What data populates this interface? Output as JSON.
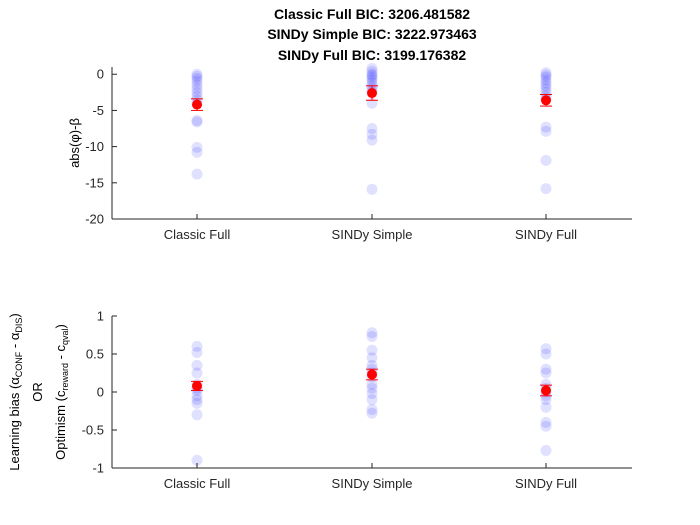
{
  "figure": {
    "title_lines": [
      "Classic Full BIC: 3206.481582",
      "SINDy Simple BIC: 3222.973463",
      "SINDy Full BIC: 3199.176382"
    ]
  },
  "colors": {
    "points": "#0000ff",
    "points_opacity": 0.12,
    "mean": "#ff0000",
    "axis": "#262626"
  },
  "chart_data": [
    {
      "type": "scatter",
      "title": "",
      "xlabel": "",
      "ylabel": "abs(φ)-β",
      "categories": [
        "Classic Full",
        "SINDy Simple",
        "SINDy Full"
      ],
      "ylim": [
        -20,
        1
      ],
      "yticks": [
        0,
        -5,
        -10,
        -15,
        -20
      ],
      "ytick_labels": [
        "0",
        "-5",
        "-10",
        "-15",
        "-20"
      ],
      "grid": false,
      "points": [
        [
          0.0,
          -0.3,
          -0.6,
          -1.0,
          -1.5,
          -2.0,
          -2.5,
          -3.0,
          -3.5,
          -4.0,
          -6.4,
          -6.6,
          -10.1,
          -10.8,
          -13.8
        ],
        [
          0.8,
          0.4,
          0.0,
          -0.2,
          -0.5,
          -0.8,
          -1.2,
          -1.6,
          -2.0,
          -2.4,
          -4.0,
          -7.5,
          -8.3,
          -9.1,
          -15.9
        ],
        [
          0.2,
          -0.1,
          -0.4,
          -0.8,
          -1.2,
          -1.6,
          -2.0,
          -2.5,
          -3.0,
          -3.4,
          -7.3,
          -7.9,
          -11.9,
          -15.8
        ]
      ],
      "means": [
        -4.2,
        -2.6,
        -3.6
      ],
      "errors": [
        0.8,
        1.0,
        0.8
      ]
    },
    {
      "type": "scatter",
      "title": "",
      "xlabel": "",
      "ylabel_lines": [
        "Learning bias (αCONF - αDIS)",
        "OR",
        "Optimism (creward - cqval)"
      ],
      "categories": [
        "Classic Full",
        "SINDy Simple",
        "SINDy Full"
      ],
      "ylim": [
        -1,
        1
      ],
      "yticks": [
        1,
        0.5,
        0,
        -0.5,
        -1
      ],
      "ytick_labels": [
        "1",
        "0.5",
        "0",
        "-0.5",
        "-1"
      ],
      "grid": false,
      "points": [
        [
          0.6,
          0.52,
          0.35,
          0.25,
          0.1,
          0.05,
          0.02,
          -0.05,
          -0.1,
          -0.15,
          -0.3,
          -0.9
        ],
        [
          0.78,
          0.73,
          0.55,
          0.45,
          0.35,
          0.3,
          0.25,
          0.2,
          0.1,
          0.05,
          -0.02,
          -0.1,
          -0.23,
          -0.28
        ],
        [
          0.57,
          0.5,
          0.3,
          0.25,
          0.1,
          0.05,
          0.0,
          -0.05,
          -0.1,
          -0.2,
          -0.4,
          -0.45,
          -0.77
        ]
      ],
      "means": [
        0.08,
        0.23,
        0.02
      ],
      "errors": [
        0.06,
        0.07,
        0.07
      ]
    }
  ]
}
